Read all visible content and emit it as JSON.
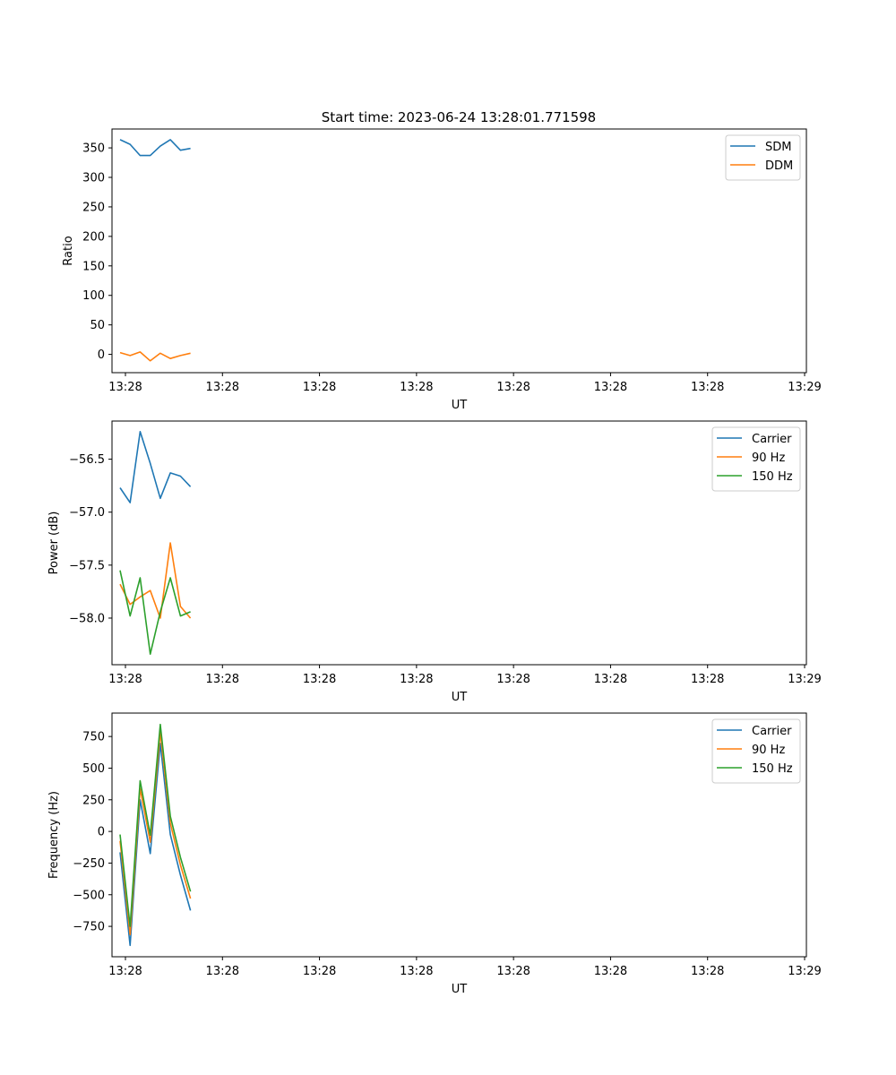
{
  "figure": {
    "title": "Start time: 2023-06-24 13:28:01.771598"
  },
  "chart_data": [
    {
      "type": "line",
      "title": "Start time: 2023-06-24 13:28:01.771598",
      "xlabel": "UT",
      "ylabel": "Ratio",
      "x": [
        "13:28:01.8",
        "13:28:02.8",
        "13:28:03.8",
        "13:28:04.8",
        "13:28:05.8",
        "13:28:06.8",
        "13:28:07.8",
        "13:28:08.8"
      ],
      "xlim": [
        "13:28:01.0",
        "13:29:10.0"
      ],
      "xticks": [
        "13:28",
        "13:28",
        "13:28",
        "13:28",
        "13:28",
        "13:28",
        "13:28",
        "13:29"
      ],
      "ylim": [
        -31,
        382
      ],
      "yticks": [
        0,
        50,
        100,
        150,
        200,
        250,
        300,
        350
      ],
      "grid": false,
      "legend": "top-right",
      "series": [
        {
          "name": "SDM",
          "color": "#1f77b4",
          "values": [
            364,
            356,
            337,
            337,
            353,
            364,
            346,
            349
          ]
        },
        {
          "name": "DDM",
          "color": "#ff7f0e",
          "values": [
            3,
            -2,
            4,
            -11,
            2,
            -7,
            -2,
            2
          ]
        }
      ]
    },
    {
      "type": "line",
      "title": "",
      "xlabel": "UT",
      "ylabel": "Power (dB)",
      "x": [
        "13:28:01.8",
        "13:28:02.8",
        "13:28:03.8",
        "13:28:04.8",
        "13:28:05.8",
        "13:28:06.8",
        "13:28:07.8",
        "13:28:08.8"
      ],
      "xlim": [
        "13:28:01.0",
        "13:29:10.0"
      ],
      "xticks": [
        "13:28",
        "13:28",
        "13:28",
        "13:28",
        "13:28",
        "13:28",
        "13:28",
        "13:29"
      ],
      "ylim": [
        -58.44,
        -56.14
      ],
      "yticks": [
        "-56.5",
        "-57.0",
        "-57.5",
        "-58.0"
      ],
      "grid": false,
      "legend": "top-right",
      "series": [
        {
          "name": "Carrier",
          "color": "#1f77b4",
          "values": [
            -56.77,
            -56.91,
            -56.24,
            -56.54,
            -56.87,
            -56.63,
            -56.66,
            -56.76
          ]
        },
        {
          "name": "90 Hz",
          "color": "#ff7f0e",
          "values": [
            -57.68,
            -57.87,
            -57.8,
            -57.74,
            -58.0,
            -57.29,
            -57.89,
            -58.0
          ]
        },
        {
          "name": "150 Hz",
          "color": "#2ca02c",
          "values": [
            -57.55,
            -57.98,
            -57.62,
            -58.34,
            -57.94,
            -57.62,
            -57.98,
            -57.94
          ]
        }
      ]
    },
    {
      "type": "line",
      "title": "",
      "xlabel": "UT",
      "ylabel": "Frequency (Hz)",
      "x": [
        "13:28:01.8",
        "13:28:02.8",
        "13:28:03.8",
        "13:28:04.8",
        "13:28:05.8",
        "13:28:06.8",
        "13:28:07.8",
        "13:28:08.8"
      ],
      "xlim": [
        "13:28:01.0",
        "13:29:10.0"
      ],
      "xticks": [
        "13:28",
        "13:28",
        "13:28",
        "13:28",
        "13:28",
        "13:28",
        "13:28",
        "13:29"
      ],
      "ylim": [
        -990,
        935
      ],
      "yticks": [
        750,
        500,
        250,
        0,
        -250,
        -500,
        -750
      ],
      "grid": false,
      "legend": "top-right",
      "series": [
        {
          "name": "Carrier",
          "color": "#1f77b4",
          "values": [
            -165,
            -900,
            250,
            -175,
            695,
            -25,
            -345,
            -625
          ]
        },
        {
          "name": "90 Hz",
          "color": "#ff7f0e",
          "values": [
            -75,
            -815,
            340,
            -85,
            785,
            65,
            -265,
            -530
          ]
        },
        {
          "name": "150 Hz",
          "color": "#2ca02c",
          "values": [
            -25,
            -750,
            400,
            -30,
            845,
            120,
            -205,
            -475
          ]
        }
      ]
    }
  ]
}
